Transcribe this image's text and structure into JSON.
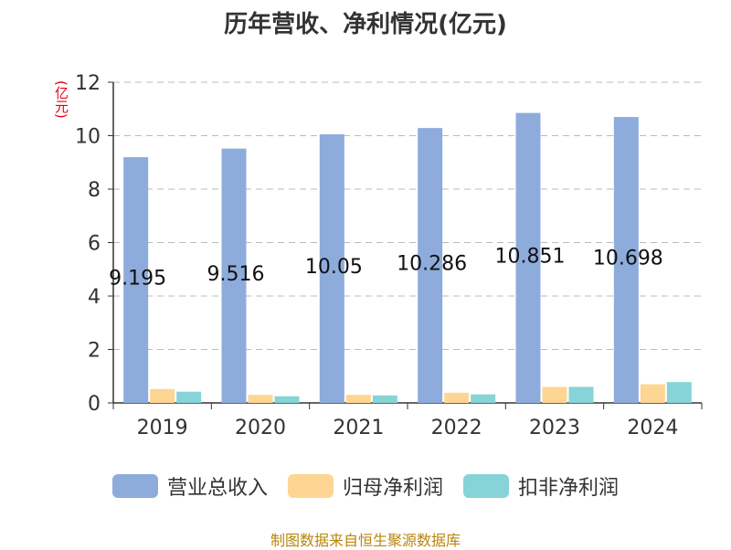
{
  "chart_data": {
    "type": "bar",
    "title": "历年营收、净利情况(亿元)",
    "unit": "(亿元)",
    "categories": [
      "2019",
      "2020",
      "2021",
      "2022",
      "2023",
      "2024"
    ],
    "series": [
      {
        "name": "营业总收入",
        "color": "#8eacdb",
        "values": [
          9.195,
          9.516,
          10.05,
          10.286,
          10.851,
          10.698
        ],
        "labels": [
          "9.195",
          "9.516",
          "10.05",
          "10.286",
          "10.851",
          "10.698"
        ]
      },
      {
        "name": "归母净利润",
        "color": "#fdd693",
        "values": [
          0.52,
          0.3,
          0.3,
          0.38,
          0.6,
          0.7
        ]
      },
      {
        "name": "扣非净利润",
        "color": "#86d4d8",
        "values": [
          0.42,
          0.25,
          0.28,
          0.32,
          0.6,
          0.78
        ]
      }
    ],
    "yticks": [
      "0",
      "2",
      "4",
      "6",
      "8",
      "10",
      "12"
    ],
    "ylim": [
      0,
      12
    ],
    "grid": true,
    "legend": "bottom",
    "source": "制图数据来自恒生聚源数据库"
  }
}
